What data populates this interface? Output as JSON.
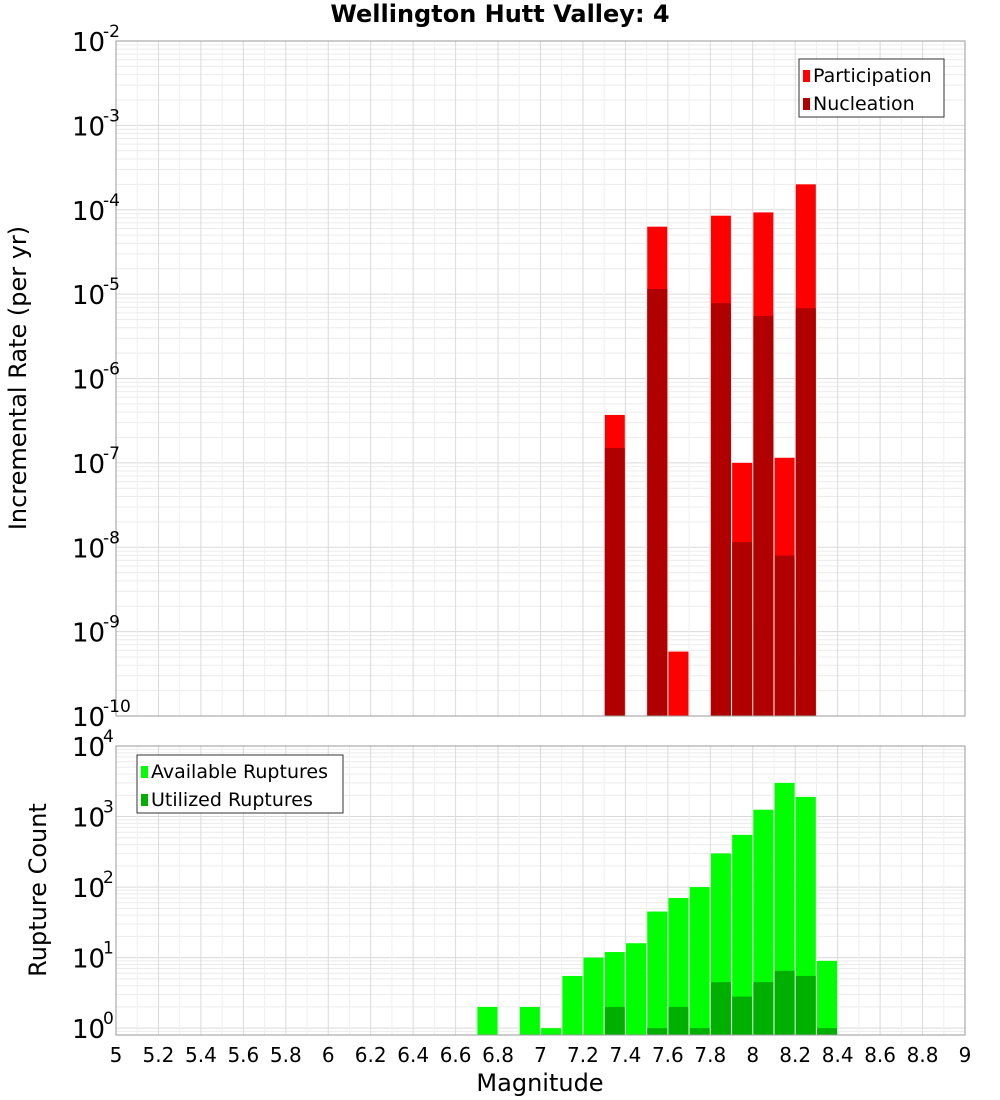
{
  "chart_data": [
    {
      "type": "bar",
      "title": "Wellington Hutt Valley: 4",
      "ylabel": "Incremental Rate (per yr)",
      "yscale": "log",
      "ylim": [
        1e-10,
        0.01
      ],
      "xlim": [
        5,
        9
      ],
      "ytick_exponents": [
        "-10",
        "-9",
        "-8",
        "-7",
        "-6",
        "-5",
        "-4",
        "-3",
        "-2"
      ],
      "legend_position": "top-right",
      "series": [
        {
          "name": "Participation",
          "color": "#ff0000",
          "points": [
            {
              "x": 7.35,
              "y": 3.7e-07
            },
            {
              "x": 7.55,
              "y": 6.3e-05
            },
            {
              "x": 7.65,
              "y": 5.8e-10
            },
            {
              "x": 7.85,
              "y": 8.5e-05
            },
            {
              "x": 7.95,
              "y": 1e-07
            },
            {
              "x": 8.05,
              "y": 9.3e-05
            },
            {
              "x": 8.15,
              "y": 1.15e-07
            },
            {
              "x": 8.25,
              "y": 0.0002
            }
          ]
        },
        {
          "name": "Nucleation",
          "color": "#b00000",
          "points": [
            {
              "x": 7.35,
              "y": 1.5e-07
            },
            {
              "x": 7.55,
              "y": 1.15e-05
            },
            {
              "x": 7.85,
              "y": 7.8e-06
            },
            {
              "x": 7.95,
              "y": 1.15e-08
            },
            {
              "x": 8.05,
              "y": 5.5e-06
            },
            {
              "x": 8.15,
              "y": 8e-09
            },
            {
              "x": 8.25,
              "y": 6.8e-06
            }
          ]
        }
      ]
    },
    {
      "type": "bar",
      "xlabel": "Magnitude",
      "ylabel": "Rupture Count",
      "yscale": "log",
      "ylim": [
        0.8,
        10000
      ],
      "xlim": [
        5,
        9
      ],
      "ytick_exponents": [
        "0",
        "1",
        "2",
        "3",
        "4"
      ],
      "xticks": [
        "5",
        "5.2",
        "5.4",
        "5.6",
        "5.8",
        "6",
        "6.2",
        "6.4",
        "6.6",
        "6.8",
        "7",
        "7.2",
        "7.4",
        "7.6",
        "7.8",
        "8",
        "8.2",
        "8.4",
        "8.6",
        "8.8",
        "9"
      ],
      "legend_position": "top-left",
      "series": [
        {
          "name": "Available Ruptures",
          "color": "#00ff00",
          "points": [
            {
              "x": 6.75,
              "y": 2
            },
            {
              "x": 6.95,
              "y": 2
            },
            {
              "x": 7.05,
              "y": 1
            },
            {
              "x": 7.15,
              "y": 5.5
            },
            {
              "x": 7.25,
              "y": 10
            },
            {
              "x": 7.35,
              "y": 12
            },
            {
              "x": 7.45,
              "y": 16
            },
            {
              "x": 7.55,
              "y": 45
            },
            {
              "x": 7.65,
              "y": 70
            },
            {
              "x": 7.75,
              "y": 100
            },
            {
              "x": 7.85,
              "y": 300
            },
            {
              "x": 7.95,
              "y": 550
            },
            {
              "x": 8.05,
              "y": 1250
            },
            {
              "x": 8.15,
              "y": 3000
            },
            {
              "x": 8.25,
              "y": 1900
            },
            {
              "x": 8.35,
              "y": 9
            }
          ]
        },
        {
          "name": "Utilized Ruptures",
          "color": "#00b000",
          "points": [
            {
              "x": 7.35,
              "y": 2
            },
            {
              "x": 7.55,
              "y": 1
            },
            {
              "x": 7.65,
              "y": 2
            },
            {
              "x": 7.75,
              "y": 1
            },
            {
              "x": 7.85,
              "y": 4.5
            },
            {
              "x": 7.95,
              "y": 2.8
            },
            {
              "x": 8.05,
              "y": 4.5
            },
            {
              "x": 8.15,
              "y": 6.5
            },
            {
              "x": 8.25,
              "y": 5.5
            },
            {
              "x": 8.35,
              "y": 1
            }
          ]
        }
      ]
    }
  ]
}
